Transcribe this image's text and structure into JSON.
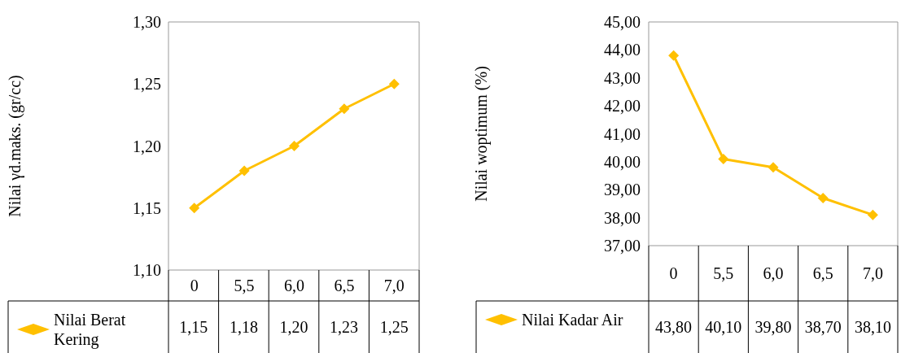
{
  "chart_data": [
    {
      "type": "line",
      "ylabel": "Nilai γd.maks. (gr/cc)",
      "categories": [
        "0",
        "5,5",
        "6,0",
        "6,5",
        "7,0"
      ],
      "series": [
        {
          "name": "Nilai Berat Kering",
          "color": "#ffc000",
          "values": [
            1.15,
            1.18,
            1.2,
            1.23,
            1.25
          ],
          "value_labels": [
            "1,15",
            "1,18",
            "1,20",
            "1,23",
            "1,25"
          ]
        }
      ],
      "ylim": [
        1.1,
        1.3
      ],
      "yticks": [
        {
          "value": 1.1,
          "label": "1,10"
        },
        {
          "value": 1.15,
          "label": "1,15"
        },
        {
          "value": 1.2,
          "label": "1,20"
        },
        {
          "value": 1.25,
          "label": "1,25"
        },
        {
          "value": 1.3,
          "label": "1,30"
        }
      ],
      "grid": false,
      "legend": "bottom left",
      "marker": "diamond",
      "line_style": "solid"
    },
    {
      "type": "line",
      "ylabel": "Nilai woptimum (%)",
      "categories": [
        "0",
        "5,5",
        "6,0",
        "6,5",
        "7,0"
      ],
      "series": [
        {
          "name": "Nilai Kadar Air",
          "color": "#ffc000",
          "values": [
            43.8,
            40.1,
            39.8,
            38.7,
            38.1
          ],
          "value_labels": [
            "43,80",
            "40,10",
            "39,80",
            "38,70",
            "38,10"
          ]
        }
      ],
      "ylim": [
        37,
        45
      ],
      "yticks": [
        {
          "value": 37,
          "label": "37,00"
        },
        {
          "value": 38,
          "label": "38,00"
        },
        {
          "value": 39,
          "label": "39,00"
        },
        {
          "value": 40,
          "label": "40,00"
        },
        {
          "value": 41,
          "label": "41,00"
        },
        {
          "value": 42,
          "label": "42,00"
        },
        {
          "value": 43,
          "label": "43,00"
        },
        {
          "value": 44,
          "label": "44,00"
        },
        {
          "value": 45,
          "label": "45,00"
        }
      ],
      "grid": false,
      "legend": "bottom left",
      "marker": "diamond",
      "line_style": "solid"
    }
  ]
}
